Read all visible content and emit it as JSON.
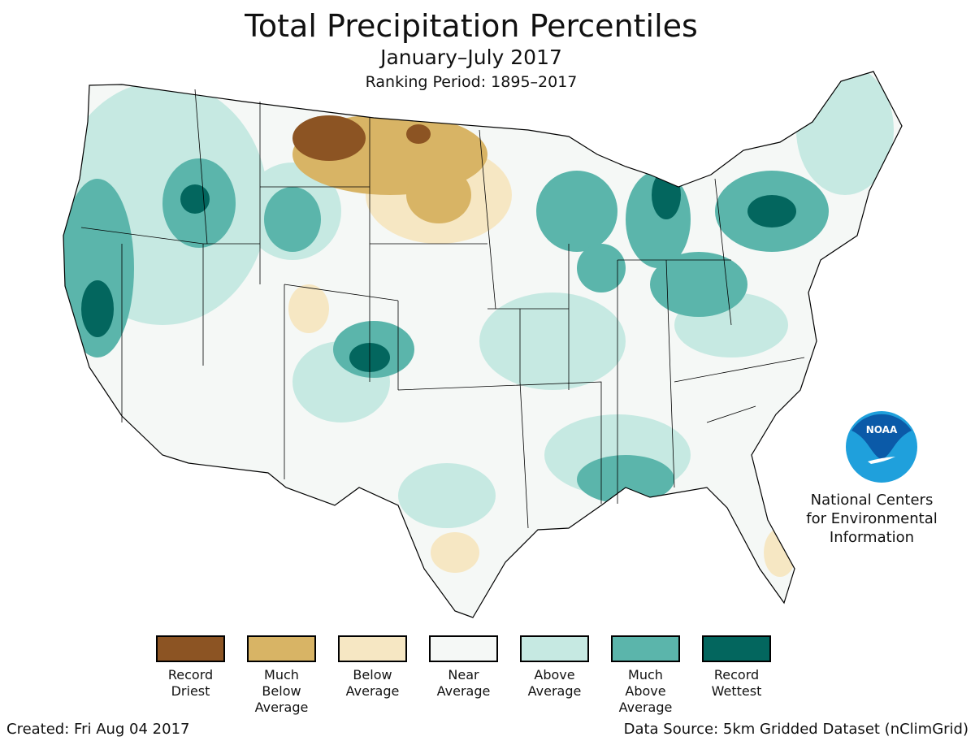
{
  "header": {
    "title": "Total Precipitation Percentiles",
    "subtitle": "January–July 2017",
    "ranking_period": "Ranking Period: 1895–2017"
  },
  "legend": [
    {
      "label": "Record Driest",
      "color": "#8c5423"
    },
    {
      "label": "Much Below Average",
      "color": "#d8b465"
    },
    {
      "label": "Below Average",
      "color": "#f6e7c3"
    },
    {
      "label": "Near Average",
      "color": "#f5f8f6"
    },
    {
      "label": "Above Average",
      "color": "#c6e9e2"
    },
    {
      "label": "Much Above Average",
      "color": "#5bb5ab"
    },
    {
      "label": "Record Wettest",
      "color": "#03665e"
    }
  ],
  "logo": {
    "text": "NOAA",
    "org": "National Centers for Environmental Information"
  },
  "footer": {
    "created": "Created: Fri Aug 04 2017",
    "source": "Data Source: 5km Gridded Dataset (nClimGrid)"
  }
}
